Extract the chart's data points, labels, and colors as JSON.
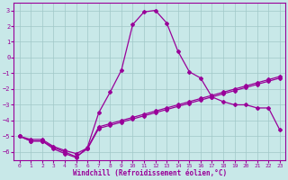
{
  "xlabel": "Windchill (Refroidissement éolien,°C)",
  "background_color": "#c8e8e8",
  "grid_color": "#a0c8c8",
  "line_color": "#990099",
  "xlim": [
    -0.5,
    23.5
  ],
  "ylim": [
    -6.5,
    3.5
  ],
  "xticks": [
    0,
    1,
    2,
    3,
    4,
    5,
    6,
    7,
    8,
    9,
    10,
    11,
    12,
    13,
    14,
    15,
    16,
    17,
    18,
    19,
    20,
    21,
    22,
    23
  ],
  "yticks": [
    -6,
    -5,
    -4,
    -3,
    -2,
    -1,
    0,
    1,
    2,
    3
  ],
  "line1_x": [
    0,
    1,
    2,
    3,
    4,
    5,
    6,
    7,
    8,
    9,
    10,
    11,
    12,
    13,
    14,
    15,
    16,
    17,
    18,
    19,
    20,
    21,
    22,
    23
  ],
  "line1_y": [
    -5.0,
    -5.3,
    -5.3,
    -5.7,
    -6.0,
    -6.3,
    -5.8,
    -4.5,
    -4.3,
    -4.1,
    -3.9,
    -3.7,
    -3.5,
    -3.3,
    -3.1,
    -2.9,
    -2.7,
    -2.5,
    -2.3,
    -2.1,
    -1.9,
    -1.7,
    -1.5,
    -1.3
  ],
  "line2_x": [
    0,
    1,
    2,
    3,
    4,
    5,
    6,
    7,
    8,
    9,
    10,
    11,
    12,
    13,
    14,
    15,
    16,
    17,
    18,
    19,
    20,
    21,
    22,
    23
  ],
  "line2_y": [
    -5.0,
    -5.3,
    -5.3,
    -5.8,
    -6.1,
    -6.35,
    -5.7,
    -3.5,
    -2.2,
    -0.8,
    2.1,
    2.9,
    3.0,
    2.2,
    0.4,
    -0.9,
    -1.3,
    -2.5,
    -2.8,
    -3.0,
    -3.0,
    -3.2,
    -3.2,
    -4.6
  ],
  "line3_x": [
    0,
    1,
    2,
    3,
    4,
    5,
    6,
    7,
    8,
    9,
    10,
    11,
    12,
    13,
    14,
    15,
    16,
    17,
    18,
    19,
    20,
    21,
    22,
    23
  ],
  "line3_y": [
    -5.0,
    -5.2,
    -5.2,
    -5.65,
    -5.9,
    -6.1,
    -5.75,
    -4.4,
    -4.2,
    -4.0,
    -3.8,
    -3.6,
    -3.4,
    -3.2,
    -3.0,
    -2.8,
    -2.6,
    -2.4,
    -2.2,
    -2.0,
    -1.8,
    -1.6,
    -1.4,
    -1.2
  ]
}
